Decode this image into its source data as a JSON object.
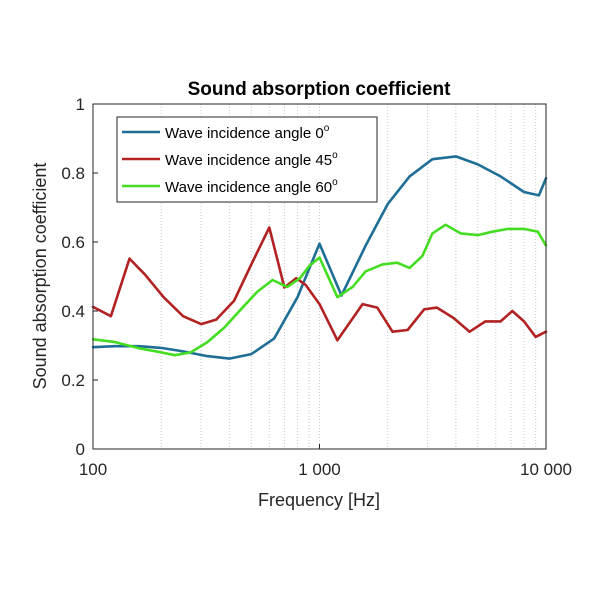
{
  "chart_data": {
    "type": "line",
    "title": "Sound absorption coefficient",
    "xlabel": "Frequency [Hz]",
    "ylabel": "Sound absorption coefficient",
    "x_scale": "log",
    "xlim": [
      100,
      10000
    ],
    "ylim": [
      0,
      1
    ],
    "x_ticks": [
      100,
      1000,
      10000
    ],
    "x_tick_labels": [
      "100",
      "1 000",
      "10 000"
    ],
    "y_ticks": [
      0,
      0.2,
      0.4,
      0.6,
      0.8,
      1
    ],
    "y_tick_labels": [
      "0",
      "0.2",
      "0.4",
      "0.6",
      "0.8",
      "1"
    ],
    "grid": "vertical minor dotted",
    "legend_position": "top-left",
    "series": [
      {
        "name_main": "Wave incidence angle 0",
        "name_sup": "o",
        "color": "#1f6e96",
        "x": [
          100,
          125,
          160,
          200,
          250,
          315,
          400,
          500,
          630,
          800,
          1000,
          1250,
          1600,
          2000,
          2500,
          3150,
          4000,
          5000,
          6300,
          8000,
          9300,
          10000
        ],
        "y": [
          0.295,
          0.298,
          0.298,
          0.293,
          0.283,
          0.27,
          0.262,
          0.275,
          0.32,
          0.44,
          0.595,
          0.445,
          0.59,
          0.71,
          0.79,
          0.84,
          0.848,
          0.825,
          0.79,
          0.745,
          0.735,
          0.785
        ]
      },
      {
        "name_main": "Wave incidence angle 45",
        "name_sup": "o",
        "color": "#b22222",
        "x": [
          100,
          120,
          145,
          170,
          205,
          250,
          300,
          350,
          420,
          500,
          600,
          700,
          790,
          870,
          1000,
          1200,
          1550,
          1800,
          2100,
          2450,
          2900,
          3300,
          3900,
          4600,
          5400,
          6300,
          7100,
          8000,
          9000,
          10000
        ],
        "y": [
          0.412,
          0.385,
          0.552,
          0.505,
          0.44,
          0.385,
          0.362,
          0.375,
          0.43,
          0.535,
          0.642,
          0.468,
          0.495,
          0.475,
          0.42,
          0.315,
          0.42,
          0.41,
          0.34,
          0.345,
          0.405,
          0.41,
          0.38,
          0.34,
          0.37,
          0.37,
          0.4,
          0.37,
          0.325,
          0.34
        ]
      },
      {
        "name_main": "Wave incidence angle 60",
        "name_sup": "o",
        "color": "#44dd22",
        "x": [
          100,
          125,
          160,
          200,
          230,
          270,
          320,
          380,
          450,
          530,
          620,
          720,
          820,
          900,
          1000,
          1200,
          1400,
          1600,
          1900,
          2200,
          2500,
          2850,
          3150,
          3600,
          4200,
          5000,
          5800,
          6800,
          8000,
          9200,
          10000
        ],
        "y": [
          0.318,
          0.31,
          0.292,
          0.28,
          0.272,
          0.28,
          0.31,
          0.352,
          0.405,
          0.455,
          0.49,
          0.47,
          0.495,
          0.53,
          0.555,
          0.44,
          0.47,
          0.515,
          0.535,
          0.54,
          0.525,
          0.56,
          0.625,
          0.65,
          0.625,
          0.62,
          0.63,
          0.638,
          0.638,
          0.63,
          0.59
        ]
      }
    ]
  }
}
